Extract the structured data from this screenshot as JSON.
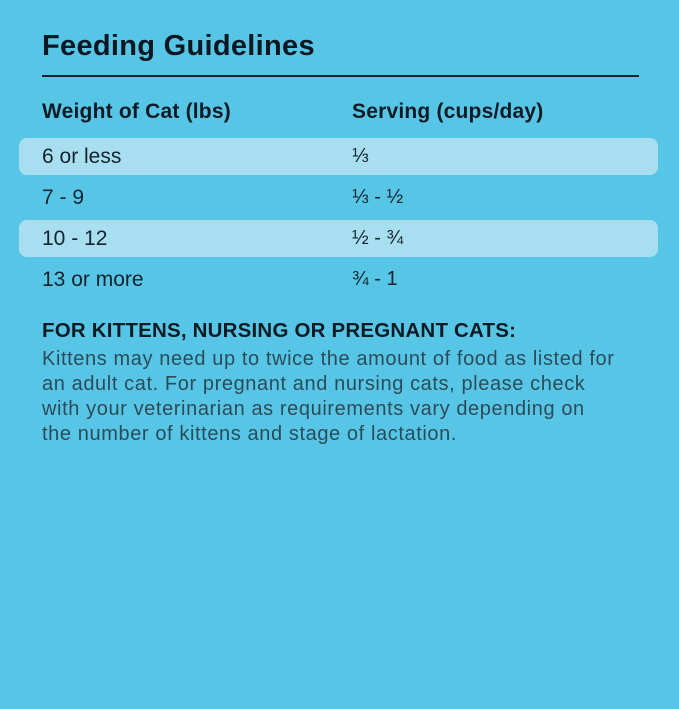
{
  "title": "Feeding Guidelines",
  "table": {
    "columns": {
      "weight": "Weight of Cat (lbs)",
      "serving": "Serving (cups/day)"
    },
    "rows": [
      {
        "weight": "6 or less",
        "serving": "⅓"
      },
      {
        "weight": "7 - 9",
        "serving": "⅓ - ½"
      },
      {
        "weight": "10 - 12",
        "serving": "½ - ¾"
      },
      {
        "weight": "13 or more",
        "serving": "¾ - 1"
      }
    ]
  },
  "note": {
    "heading": "FOR KITTENS, NURSING OR PREGNANT CATS:",
    "body": "Kittens may need up to twice the amount of food as listed for an adult cat. For pregnant and nursing cats, please check with your veterinarian as requirements vary depending on the number of kittens and stage of lactation."
  },
  "colors": {
    "background": "#57C6E6",
    "row_highlight": "#A7DFF1",
    "title_text": "#0C1721",
    "heading_text": "#0E1A24",
    "body_text": "#2C4B59",
    "divider": "#14222C"
  }
}
